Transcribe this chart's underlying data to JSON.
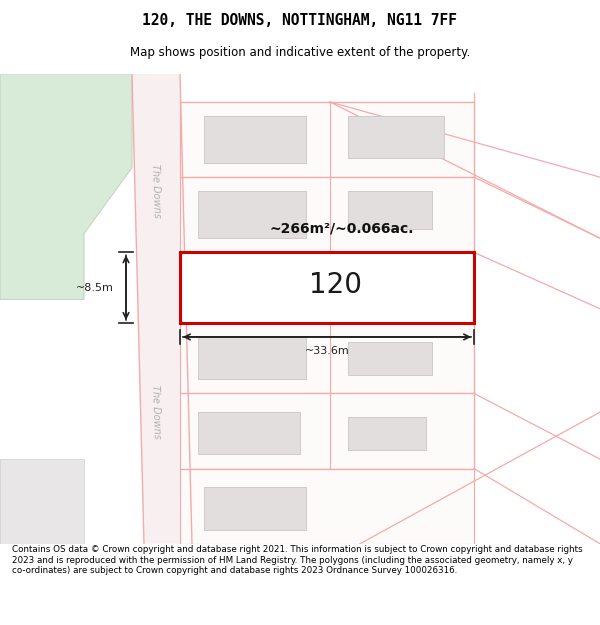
{
  "title": "120, THE DOWNS, NOTTINGHAM, NG11 7FF",
  "subtitle": "Map shows position and indicative extent of the property.",
  "footer": "Contains OS data © Crown copyright and database right 2021. This information is subject to Crown copyright and database rights 2023 and is reproduced with the permission of HM Land Registry. The polygons (including the associated geometry, namely x, y co-ordinates) are subject to Crown copyright and database rights 2023 Ordnance Survey 100026316.",
  "map_bg": "#faf8f8",
  "road_line_color": "#f5aaaa",
  "plot_fill": "#fdfafa",
  "plot_edge": "#f5aaaa",
  "building_fill": "#e2dede",
  "building_edge": "#d0cccc",
  "green_fill": "#d8ead8",
  "green_edge": "#c0d8c0",
  "grey_fill": "#e8e6e6",
  "highlight_fill": "#ffffff",
  "highlight_edge": "#cc0000",
  "dim_area_text": "~266m²/~0.066ac.",
  "dim_width_text": "~33.6m",
  "dim_height_text": "~8.5m",
  "parcel_number": "120",
  "road_label": "The Downs"
}
